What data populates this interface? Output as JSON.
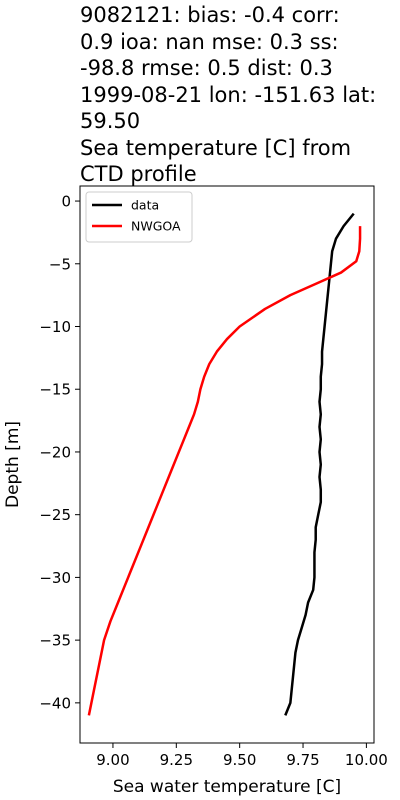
{
  "title_lines": [
    "9082121: bias: -0.4  corr:",
    "0.9  ioa: nan  mse: 0.3  ss:",
    "-98.8  rmse: 0.5  dist: 0.3",
    "1999-08-21 lon: -151.63 lat:",
    "59.50",
    "Sea temperature [C] from",
    "CTD profile"
  ],
  "chart_data": {
    "type": "line",
    "xlabel": "Sea water temperature [C]",
    "ylabel": "Depth [m]",
    "xlim": [
      8.87,
      10.03
    ],
    "ylim": [
      -43.2,
      1.2
    ],
    "xticks": [
      9.0,
      9.25,
      9.5,
      9.75,
      10.0
    ],
    "xtick_labels": [
      "9.00",
      "9.25",
      "9.50",
      "9.75",
      "10.00"
    ],
    "yticks": [
      0,
      -5,
      -10,
      -15,
      -20,
      -25,
      -30,
      -35,
      -40
    ],
    "ytick_labels": [
      "0",
      "−5",
      "−10",
      "−15",
      "−20",
      "−25",
      "−30",
      "−35",
      "−40"
    ],
    "grid": false,
    "legend_position": "upper left",
    "series": [
      {
        "name": "data",
        "color": "#000000",
        "points": [
          [
            9.95,
            -1
          ],
          [
            9.91,
            -2
          ],
          [
            9.88,
            -3
          ],
          [
            9.865,
            -4
          ],
          [
            9.86,
            -5
          ],
          [
            9.855,
            -6
          ],
          [
            9.85,
            -7
          ],
          [
            9.845,
            -8
          ],
          [
            9.84,
            -9
          ],
          [
            9.835,
            -10
          ],
          [
            9.83,
            -11
          ],
          [
            9.825,
            -12
          ],
          [
            9.825,
            -13
          ],
          [
            9.82,
            -14
          ],
          [
            9.82,
            -15
          ],
          [
            9.815,
            -16
          ],
          [
            9.82,
            -17
          ],
          [
            9.815,
            -18
          ],
          [
            9.82,
            -19
          ],
          [
            9.815,
            -20
          ],
          [
            9.82,
            -21
          ],
          [
            9.815,
            -22
          ],
          [
            9.82,
            -23
          ],
          [
            9.82,
            -24
          ],
          [
            9.81,
            -25
          ],
          [
            9.8,
            -26
          ],
          [
            9.8,
            -27
          ],
          [
            9.795,
            -28
          ],
          [
            9.795,
            -29
          ],
          [
            9.795,
            -30
          ],
          [
            9.79,
            -31
          ],
          [
            9.77,
            -32
          ],
          [
            9.76,
            -33
          ],
          [
            9.745,
            -34
          ],
          [
            9.73,
            -35
          ],
          [
            9.72,
            -36
          ],
          [
            9.715,
            -37
          ],
          [
            9.71,
            -38
          ],
          [
            9.705,
            -39
          ],
          [
            9.7,
            -40
          ],
          [
            9.68,
            -41
          ]
        ]
      },
      {
        "name": "NWGOA",
        "color": "#ff0000",
        "points": [
          [
            9.975,
            -2
          ],
          [
            9.975,
            -3
          ],
          [
            9.972,
            -4
          ],
          [
            9.96,
            -4.8
          ],
          [
            9.9,
            -5.7
          ],
          [
            9.8,
            -6.6
          ],
          [
            9.7,
            -7.5
          ],
          [
            9.6,
            -8.6
          ],
          [
            9.5,
            -10
          ],
          [
            9.45,
            -11
          ],
          [
            9.41,
            -12
          ],
          [
            9.38,
            -13
          ],
          [
            9.36,
            -14
          ],
          [
            9.345,
            -15
          ],
          [
            9.335,
            -16
          ],
          [
            9.32,
            -17
          ],
          [
            9.3,
            -18
          ],
          [
            9.28,
            -19
          ],
          [
            9.26,
            -20
          ],
          [
            9.23,
            -21.5
          ],
          [
            9.2,
            -23
          ],
          [
            9.17,
            -24.5
          ],
          [
            9.14,
            -26
          ],
          [
            9.11,
            -27.5
          ],
          [
            9.08,
            -29
          ],
          [
            9.05,
            -30.5
          ],
          [
            9.02,
            -32
          ],
          [
            8.99,
            -33.5
          ],
          [
            8.965,
            -35
          ],
          [
            8.945,
            -37
          ],
          [
            8.925,
            -39
          ],
          [
            8.905,
            -41
          ]
        ]
      }
    ]
  }
}
